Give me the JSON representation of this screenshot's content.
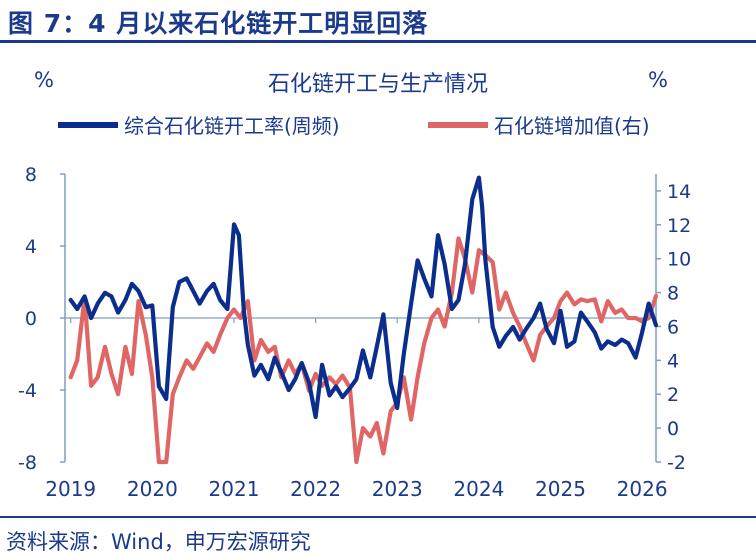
{
  "figure": {
    "title": "图 7：4 月以来石化链开工明显回落",
    "source": "资料来源：Wind，申万宏源研究"
  },
  "chart_data": {
    "type": "line",
    "title": "石化链开工与生产情况",
    "left_unit": "%",
    "right_unit": "%",
    "x_ticks": [
      "2019",
      "2020",
      "2021",
      "2022",
      "2023",
      "2024",
      "2025",
      "2026"
    ],
    "left_axis": {
      "min": -8,
      "max": 8,
      "ticks": [
        "8",
        "4",
        "0",
        "-4",
        "-8"
      ]
    },
    "right_axis": {
      "min": -2,
      "max": 15,
      "ticks": [
        "14",
        "12",
        "10",
        "8",
        "6",
        "4",
        "2",
        "0",
        "-2"
      ]
    },
    "colors": {
      "series1": "#0b2d8c",
      "series2": "#e06666",
      "axis": "#7f9fbf",
      "title_color": "#1b3a8c"
    },
    "series": [
      {
        "name": "综合石化链开工率(周频)",
        "axis": "left",
        "x": [
          2019.0,
          2019.08,
          2019.17,
          2019.25,
          2019.33,
          2019.42,
          2019.5,
          2019.58,
          2019.67,
          2019.75,
          2019.83,
          2019.92,
          2020.0,
          2020.08,
          2020.17,
          2020.25,
          2020.33,
          2020.42,
          2020.5,
          2020.58,
          2020.67,
          2020.75,
          2020.83,
          2020.92,
          2021.0,
          2021.06,
          2021.12,
          2021.17,
          2021.25,
          2021.33,
          2021.42,
          2021.5,
          2021.58,
          2021.67,
          2021.75,
          2021.83,
          2021.92,
          2022.0,
          2022.08,
          2022.17,
          2022.25,
          2022.33,
          2022.42,
          2022.5,
          2022.58,
          2022.67,
          2022.75,
          2022.83,
          2022.92,
          2023.0,
          2023.08,
          2023.17,
          2023.25,
          2023.33,
          2023.42,
          2023.5,
          2023.58,
          2023.67,
          2023.75,
          2023.83,
          2023.92,
          2024.0,
          2024.04,
          2024.08,
          2024.17,
          2024.25,
          2024.33,
          2024.42,
          2024.5,
          2024.58,
          2024.67,
          2024.75,
          2024.83,
          2024.92,
          2025.0,
          2025.08,
          2025.17,
          2025.25,
          2025.33,
          2025.42,
          2025.5,
          2025.58,
          2025.67,
          2025.75,
          2025.83,
          2025.92,
          2026.0,
          2026.08,
          2026.17
        ],
        "values": [
          1.0,
          0.5,
          1.2,
          0.0,
          0.8,
          1.4,
          1.2,
          0.3,
          1.0,
          1.9,
          1.5,
          0.6,
          0.7,
          -3.8,
          -4.5,
          0.6,
          2.0,
          2.2,
          1.5,
          0.8,
          1.5,
          1.9,
          1.0,
          0.5,
          5.2,
          4.6,
          0.4,
          -1.5,
          -3.2,
          -2.6,
          -3.4,
          -2.2,
          -3.0,
          -4.0,
          -3.4,
          -2.5,
          -3.6,
          -5.5,
          -2.6,
          -4.3,
          -3.8,
          -4.4,
          -3.9,
          -3.4,
          -1.8,
          -3.3,
          -1.6,
          0.2,
          -3.6,
          -5.0,
          -2.0,
          0.8,
          3.2,
          2.2,
          1.2,
          4.6,
          3.0,
          0.5,
          1.0,
          3.0,
          6.6,
          7.8,
          6.2,
          3.2,
          -0.5,
          -1.6,
          -1.0,
          -0.5,
          -1.2,
          -0.6,
          0.0,
          0.8,
          -0.6,
          -1.4,
          0.4,
          -1.6,
          -1.3,
          0.3,
          -0.2,
          -0.8,
          -1.7,
          -1.3,
          -1.5,
          -1.2,
          -1.4,
          -2.2,
          -0.8,
          0.8,
          -0.4
        ]
      },
      {
        "name": "石化链增加值(右)",
        "axis": "right",
        "x": [
          2019.0,
          2019.08,
          2019.17,
          2019.25,
          2019.33,
          2019.42,
          2019.5,
          2019.58,
          2019.67,
          2019.75,
          2019.83,
          2019.92,
          2020.0,
          2020.08,
          2020.17,
          2020.25,
          2020.33,
          2020.42,
          2020.5,
          2020.58,
          2020.67,
          2020.75,
          2020.83,
          2020.92,
          2021.0,
          2021.08,
          2021.17,
          2021.25,
          2021.33,
          2021.42,
          2021.5,
          2021.58,
          2021.67,
          2021.75,
          2021.83,
          2021.92,
          2022.0,
          2022.08,
          2022.17,
          2022.25,
          2022.33,
          2022.42,
          2022.5,
          2022.58,
          2022.67,
          2022.75,
          2022.83,
          2022.92,
          2023.0,
          2023.08,
          2023.17,
          2023.25,
          2023.33,
          2023.42,
          2023.5,
          2023.58,
          2023.67,
          2023.75,
          2023.83,
          2023.92,
          2024.0,
          2024.08,
          2024.17,
          2024.25,
          2024.33,
          2024.42,
          2024.5,
          2024.58,
          2024.67,
          2024.75,
          2024.83,
          2024.92,
          2025.0,
          2025.08,
          2025.17,
          2025.25,
          2025.33,
          2025.42,
          2025.5,
          2025.58,
          2025.67,
          2025.75,
          2025.83,
          2025.92,
          2026.0,
          2026.08,
          2026.17
        ],
        "values": [
          3.0,
          4.0,
          7.7,
          2.5,
          3.0,
          4.8,
          3.2,
          2.0,
          4.8,
          3.2,
          7.5,
          5.5,
          3.0,
          -2.0,
          -2.0,
          2.0,
          3.0,
          4.0,
          3.5,
          4.2,
          5.0,
          4.5,
          5.5,
          6.5,
          7.0,
          6.5,
          7.5,
          4.0,
          5.2,
          4.5,
          4.8,
          3.0,
          4.0,
          3.2,
          3.8,
          2.2,
          3.2,
          2.5,
          3.0,
          2.6,
          3.1,
          2.4,
          -2.5,
          0.0,
          -0.5,
          0.3,
          -1.5,
          1.0,
          1.5,
          3.0,
          0.5,
          3.0,
          5.0,
          6.5,
          7.0,
          6.0,
          8.0,
          11.2,
          10.0,
          8.0,
          10.5,
          10.2,
          9.8,
          7.0,
          8.0,
          6.8,
          6.0,
          5.0,
          4.0,
          5.5,
          6.0,
          6.5,
          7.5,
          8.0,
          7.3,
          7.6,
          7.5,
          7.6,
          6.3,
          7.5,
          6.8,
          7.0,
          6.5,
          6.5,
          6.3,
          6.5,
          7.8
        ]
      }
    ]
  }
}
